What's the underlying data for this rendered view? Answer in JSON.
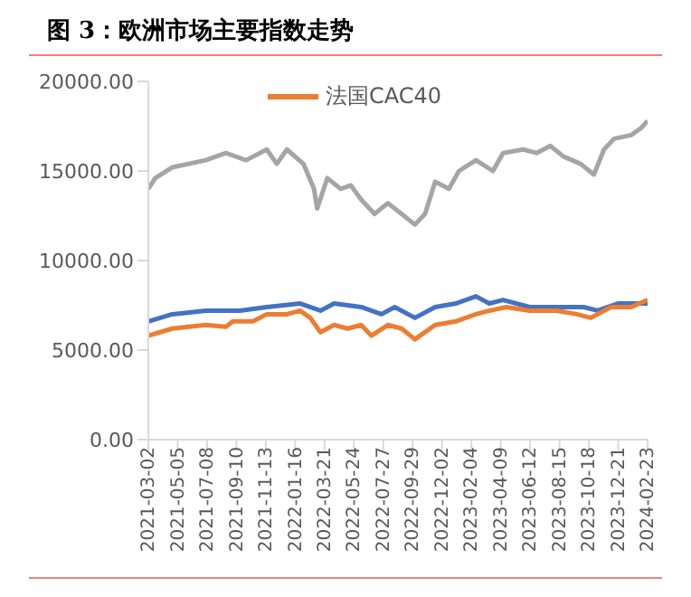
{
  "chart_data": {
    "type": "line",
    "title": "图 3：欧洲市场主要指数走势",
    "legend": "top",
    "marker": "none",
    "xlim": [
      "2021-03-02",
      "2024-02-23"
    ],
    "xticks": [
      "2021-03-02",
      "2021-05-05",
      "2021-07-08",
      "2021-09-10",
      "2021-11-13",
      "2022-01-16",
      "2022-03-21",
      "2022-05-24",
      "2022-07-27",
      "2022-09-29",
      "2022-12-02",
      "2023-02-04",
      "2023-04-09",
      "2023-06-12",
      "2023-08-15",
      "2023-10-18",
      "2023-12-21",
      "2024-02-23"
    ],
    "ylim": [
      0,
      20000
    ],
    "yticks": [
      {
        "value": 0,
        "label": "0.00"
      },
      {
        "value": 5000,
        "label": "5000.00"
      },
      {
        "value": 10000,
        "label": "10000.00"
      },
      {
        "value": 15000,
        "label": "15000.00"
      },
      {
        "value": 20000,
        "label": "20000.00"
      }
    ],
    "series": [
      {
        "color": "#a5a5a5",
        "x": [
          "2021-03-02",
          "2021-03-17",
          "2021-04-23",
          "2021-07-05",
          "2021-08-18",
          "2021-10-01",
          "2021-11-15",
          "2021-12-07",
          "2021-12-29",
          "2022-02-03",
          "2022-02-26",
          "2022-03-05",
          "2022-03-27",
          "2022-04-25",
          "2022-05-17",
          "2022-06-09",
          "2022-07-08",
          "2022-08-06",
          "2022-09-05",
          "2022-10-04",
          "2022-10-26",
          "2022-11-17",
          "2022-12-17",
          "2023-01-08",
          "2023-02-14",
          "2023-03-23",
          "2023-04-14",
          "2023-05-28",
          "2023-06-26",
          "2023-07-26",
          "2023-08-24",
          "2023-09-30",
          "2023-10-29",
          "2023-11-20",
          "2023-12-12",
          "2024-01-18",
          "2024-02-09",
          "2024-02-23"
        ],
        "values": [
          14000,
          14600,
          15200,
          15600,
          16000,
          15600,
          16200,
          15400,
          16200,
          15400,
          14000,
          12900,
          14600,
          14000,
          14200,
          13400,
          12600,
          13200,
          12600,
          12000,
          12600,
          14400,
          14000,
          15000,
          15600,
          15000,
          16000,
          16200,
          16000,
          16400,
          15800,
          15400,
          14800,
          16200,
          16800,
          17000,
          17400,
          17800
        ]
      },
      {
        "color": "#4472c4",
        "x": [
          "2021-03-02",
          "2021-04-23",
          "2021-07-05",
          "2021-09-17",
          "2021-11-15",
          "2022-01-27",
          "2022-03-12",
          "2022-04-11",
          "2022-06-09",
          "2022-07-23",
          "2022-08-21",
          "2022-10-04",
          "2022-11-17",
          "2023-01-01",
          "2023-02-14",
          "2023-03-15",
          "2023-04-14",
          "2023-06-11",
          "2023-08-09",
          "2023-10-07",
          "2023-11-06",
          "2023-12-20",
          "2024-02-23"
        ],
        "values": [
          6600,
          7000,
          7200,
          7200,
          7400,
          7600,
          7200,
          7600,
          7400,
          7000,
          7400,
          6800,
          7400,
          7600,
          8000,
          7600,
          7800,
          7400,
          7400,
          7400,
          7200,
          7600,
          7600
        ]
      },
      {
        "name": "法国CAC40",
        "color": "#ed7d31",
        "x": [
          "2021-03-02",
          "2021-04-23",
          "2021-07-05",
          "2021-08-18",
          "2021-09-02",
          "2021-10-16",
          "2021-11-15",
          "2021-12-29",
          "2022-01-27",
          "2022-02-18",
          "2022-03-12",
          "2022-04-11",
          "2022-05-10",
          "2022-06-09",
          "2022-07-01",
          "2022-08-06",
          "2022-09-05",
          "2022-10-04",
          "2022-11-17",
          "2023-01-01",
          "2023-02-14",
          "2023-03-15",
          "2023-04-21",
          "2023-06-11",
          "2023-08-09",
          "2023-09-22",
          "2023-10-22",
          "2023-12-05",
          "2024-01-18",
          "2024-02-23"
        ],
        "values": [
          5800,
          6200,
          6400,
          6300,
          6600,
          6600,
          7000,
          7000,
          7200,
          6800,
          6000,
          6400,
          6200,
          6400,
          5800,
          6400,
          6200,
          5600,
          6400,
          6600,
          7000,
          7200,
          7400,
          7200,
          7200,
          7000,
          6800,
          7400,
          7400,
          7800
        ]
      }
    ]
  }
}
